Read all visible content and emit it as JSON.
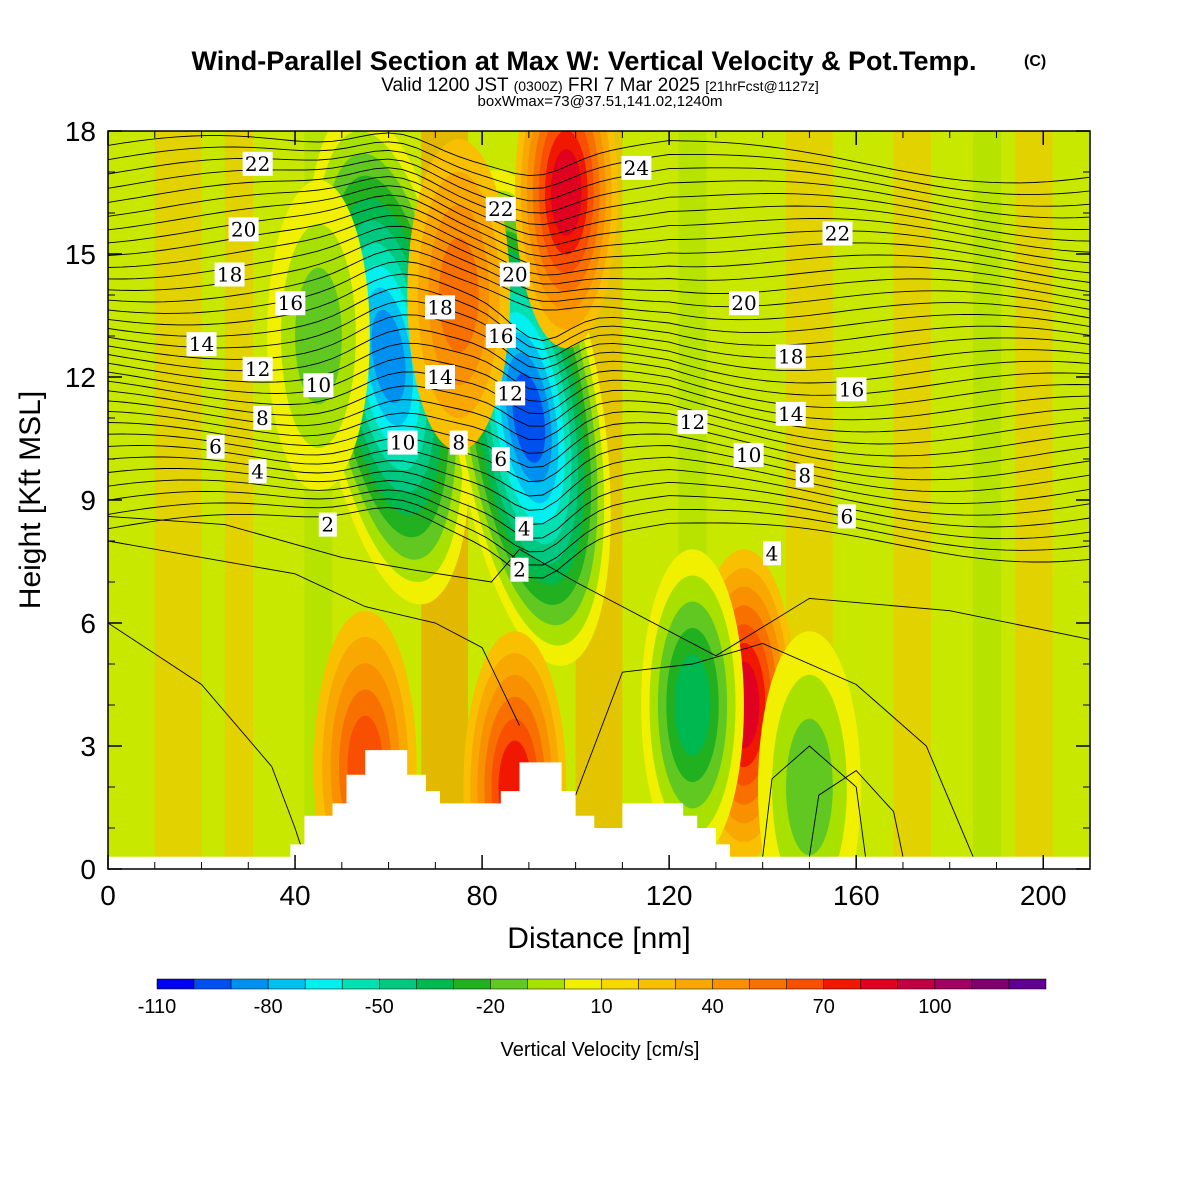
{
  "figure": {
    "title": "Wind-Parallel Section at Max W: Vertical Velocity & Pot.Temp.",
    "copyright": "(C)",
    "valid_prefix": "Valid 1200 JST",
    "valid_utc": "(0300Z)",
    "valid_date": "FRI 7 Mar 2025",
    "forecast": "[21hrFcst@1127z]",
    "boxinfo": "boxWmax=73@37.51,141.02,1240m"
  },
  "colors": {
    "background": "#ffffff",
    "contour": "#000000",
    "terrain": "#ffffff"
  },
  "chart_data": {
    "type": "heatmap",
    "xlabel": "Distance [nm]",
    "ylabel": "Height [Kft MSL]",
    "xlim": [
      0,
      210
    ],
    "ylim": [
      0,
      18
    ],
    "x_ticks": [
      "0",
      "40",
      "80",
      "120",
      "160",
      "200"
    ],
    "y_ticks": [
      "0",
      "3",
      "6",
      "9",
      "12",
      "15",
      "18"
    ],
    "colorbar": {
      "label": "Vertical Velocity [cm/s]",
      "tick_labels": [
        "-110",
        "-80",
        "-50",
        "-20",
        "10",
        "40",
        "70",
        "100"
      ],
      "colors": [
        "#0000f0",
        "#0050f0",
        "#0090f0",
        "#00c0f0",
        "#00f0f0",
        "#00e0b0",
        "#00c880",
        "#00b850",
        "#20b020",
        "#60c820",
        "#a8e000",
        "#f0f000",
        "#f8d800",
        "#f8c000",
        "#f8a800",
        "#f89000",
        "#f87000",
        "#f85000",
        "#f01800",
        "#e00020",
        "#c00040",
        "#a00060",
        "#800070",
        "#600090"
      ]
    },
    "velocity_features": [
      {
        "x": 60,
        "y": 12.5,
        "w": -100
      },
      {
        "x": 90,
        "y": 11.0,
        "w": -110
      },
      {
        "x": 98,
        "y": 16.5,
        "w": 70
      },
      {
        "x": 136,
        "y": 4.0,
        "w": 73
      },
      {
        "x": 125,
        "y": 4.0,
        "w": -45
      },
      {
        "x": 55,
        "y": 2.5,
        "w": 50
      },
      {
        "x": 87,
        "y": 2.0,
        "w": 60
      },
      {
        "x": 150,
        "y": 2.0,
        "w": -30
      },
      {
        "x": 75,
        "y": 14.0,
        "w": 40
      },
      {
        "x": 45,
        "y": 13.0,
        "w": -30
      }
    ],
    "terrain_profile": [
      {
        "x": 0,
        "h": 0.3
      },
      {
        "x": 39,
        "h": 0.3
      },
      {
        "x": 39,
        "h": 0.6
      },
      {
        "x": 42,
        "h": 0.6
      },
      {
        "x": 42,
        "h": 1.3
      },
      {
        "x": 48,
        "h": 1.3
      },
      {
        "x": 48,
        "h": 1.6
      },
      {
        "x": 51,
        "h": 1.6
      },
      {
        "x": 51,
        "h": 2.3
      },
      {
        "x": 55,
        "h": 2.3
      },
      {
        "x": 55,
        "h": 2.9
      },
      {
        "x": 64,
        "h": 2.9
      },
      {
        "x": 64,
        "h": 2.3
      },
      {
        "x": 68,
        "h": 2.3
      },
      {
        "x": 68,
        "h": 1.9
      },
      {
        "x": 71,
        "h": 1.9
      },
      {
        "x": 71,
        "h": 1.6
      },
      {
        "x": 84,
        "h": 1.6
      },
      {
        "x": 84,
        "h": 1.9
      },
      {
        "x": 88,
        "h": 1.9
      },
      {
        "x": 88,
        "h": 2.6
      },
      {
        "x": 97,
        "h": 2.6
      },
      {
        "x": 97,
        "h": 1.9
      },
      {
        "x": 100,
        "h": 1.9
      },
      {
        "x": 100,
        "h": 1.3
      },
      {
        "x": 104,
        "h": 1.3
      },
      {
        "x": 104,
        "h": 1.0
      },
      {
        "x": 110,
        "h": 1.0
      },
      {
        "x": 110,
        "h": 1.6
      },
      {
        "x": 123,
        "h": 1.6
      },
      {
        "x": 123,
        "h": 1.3
      },
      {
        "x": 126,
        "h": 1.3
      },
      {
        "x": 126,
        "h": 1.0
      },
      {
        "x": 130,
        "h": 1.0
      },
      {
        "x": 130,
        "h": 0.6
      },
      {
        "x": 133,
        "h": 0.6
      },
      {
        "x": 133,
        "h": 0.3
      },
      {
        "x": 210,
        "h": 0.3
      }
    ],
    "contour_labels": [
      {
        "text": "22",
        "x": 32,
        "y": 17.2
      },
      {
        "text": "20",
        "x": 29,
        "y": 15.6
      },
      {
        "text": "18",
        "x": 26,
        "y": 14.5
      },
      {
        "text": "16",
        "x": 39,
        "y": 13.8
      },
      {
        "text": "14",
        "x": 20,
        "y": 12.8
      },
      {
        "text": "12",
        "x": 32,
        "y": 12.2
      },
      {
        "text": "10",
        "x": 45,
        "y": 11.8
      },
      {
        "text": "8",
        "x": 33,
        "y": 11.0
      },
      {
        "text": "6",
        "x": 23,
        "y": 10.3
      },
      {
        "text": "4",
        "x": 32,
        "y": 9.7
      },
      {
        "text": "2",
        "x": 47,
        "y": 8.4
      },
      {
        "text": "22",
        "x": 84,
        "y": 16.1
      },
      {
        "text": "20",
        "x": 87,
        "y": 14.5
      },
      {
        "text": "18",
        "x": 71,
        "y": 13.7
      },
      {
        "text": "16",
        "x": 84,
        "y": 13.0
      },
      {
        "text": "14",
        "x": 71,
        "y": 12.0
      },
      {
        "text": "12",
        "x": 86,
        "y": 11.6
      },
      {
        "text": "10",
        "x": 63,
        "y": 10.4
      },
      {
        "text": "8",
        "x": 75,
        "y": 10.4
      },
      {
        "text": "6",
        "x": 84,
        "y": 10.0
      },
      {
        "text": "4",
        "x": 89,
        "y": 8.3
      },
      {
        "text": "2",
        "x": 88,
        "y": 7.3
      },
      {
        "text": "24",
        "x": 113,
        "y": 17.1
      },
      {
        "text": "20",
        "x": 136,
        "y": 13.8
      },
      {
        "text": "18",
        "x": 146,
        "y": 12.5
      },
      {
        "text": "16",
        "x": 159,
        "y": 11.7
      },
      {
        "text": "14",
        "x": 146,
        "y": 11.1
      },
      {
        "text": "12",
        "x": 125,
        "y": 10.9
      },
      {
        "text": "10",
        "x": 137,
        "y": 10.1
      },
      {
        "text": "8",
        "x": 149,
        "y": 9.6
      },
      {
        "text": "6",
        "x": 158,
        "y": 8.6
      },
      {
        "text": "4",
        "x": 142,
        "y": 7.7
      },
      {
        "text": "22",
        "x": 156,
        "y": 15.5
      }
    ]
  }
}
